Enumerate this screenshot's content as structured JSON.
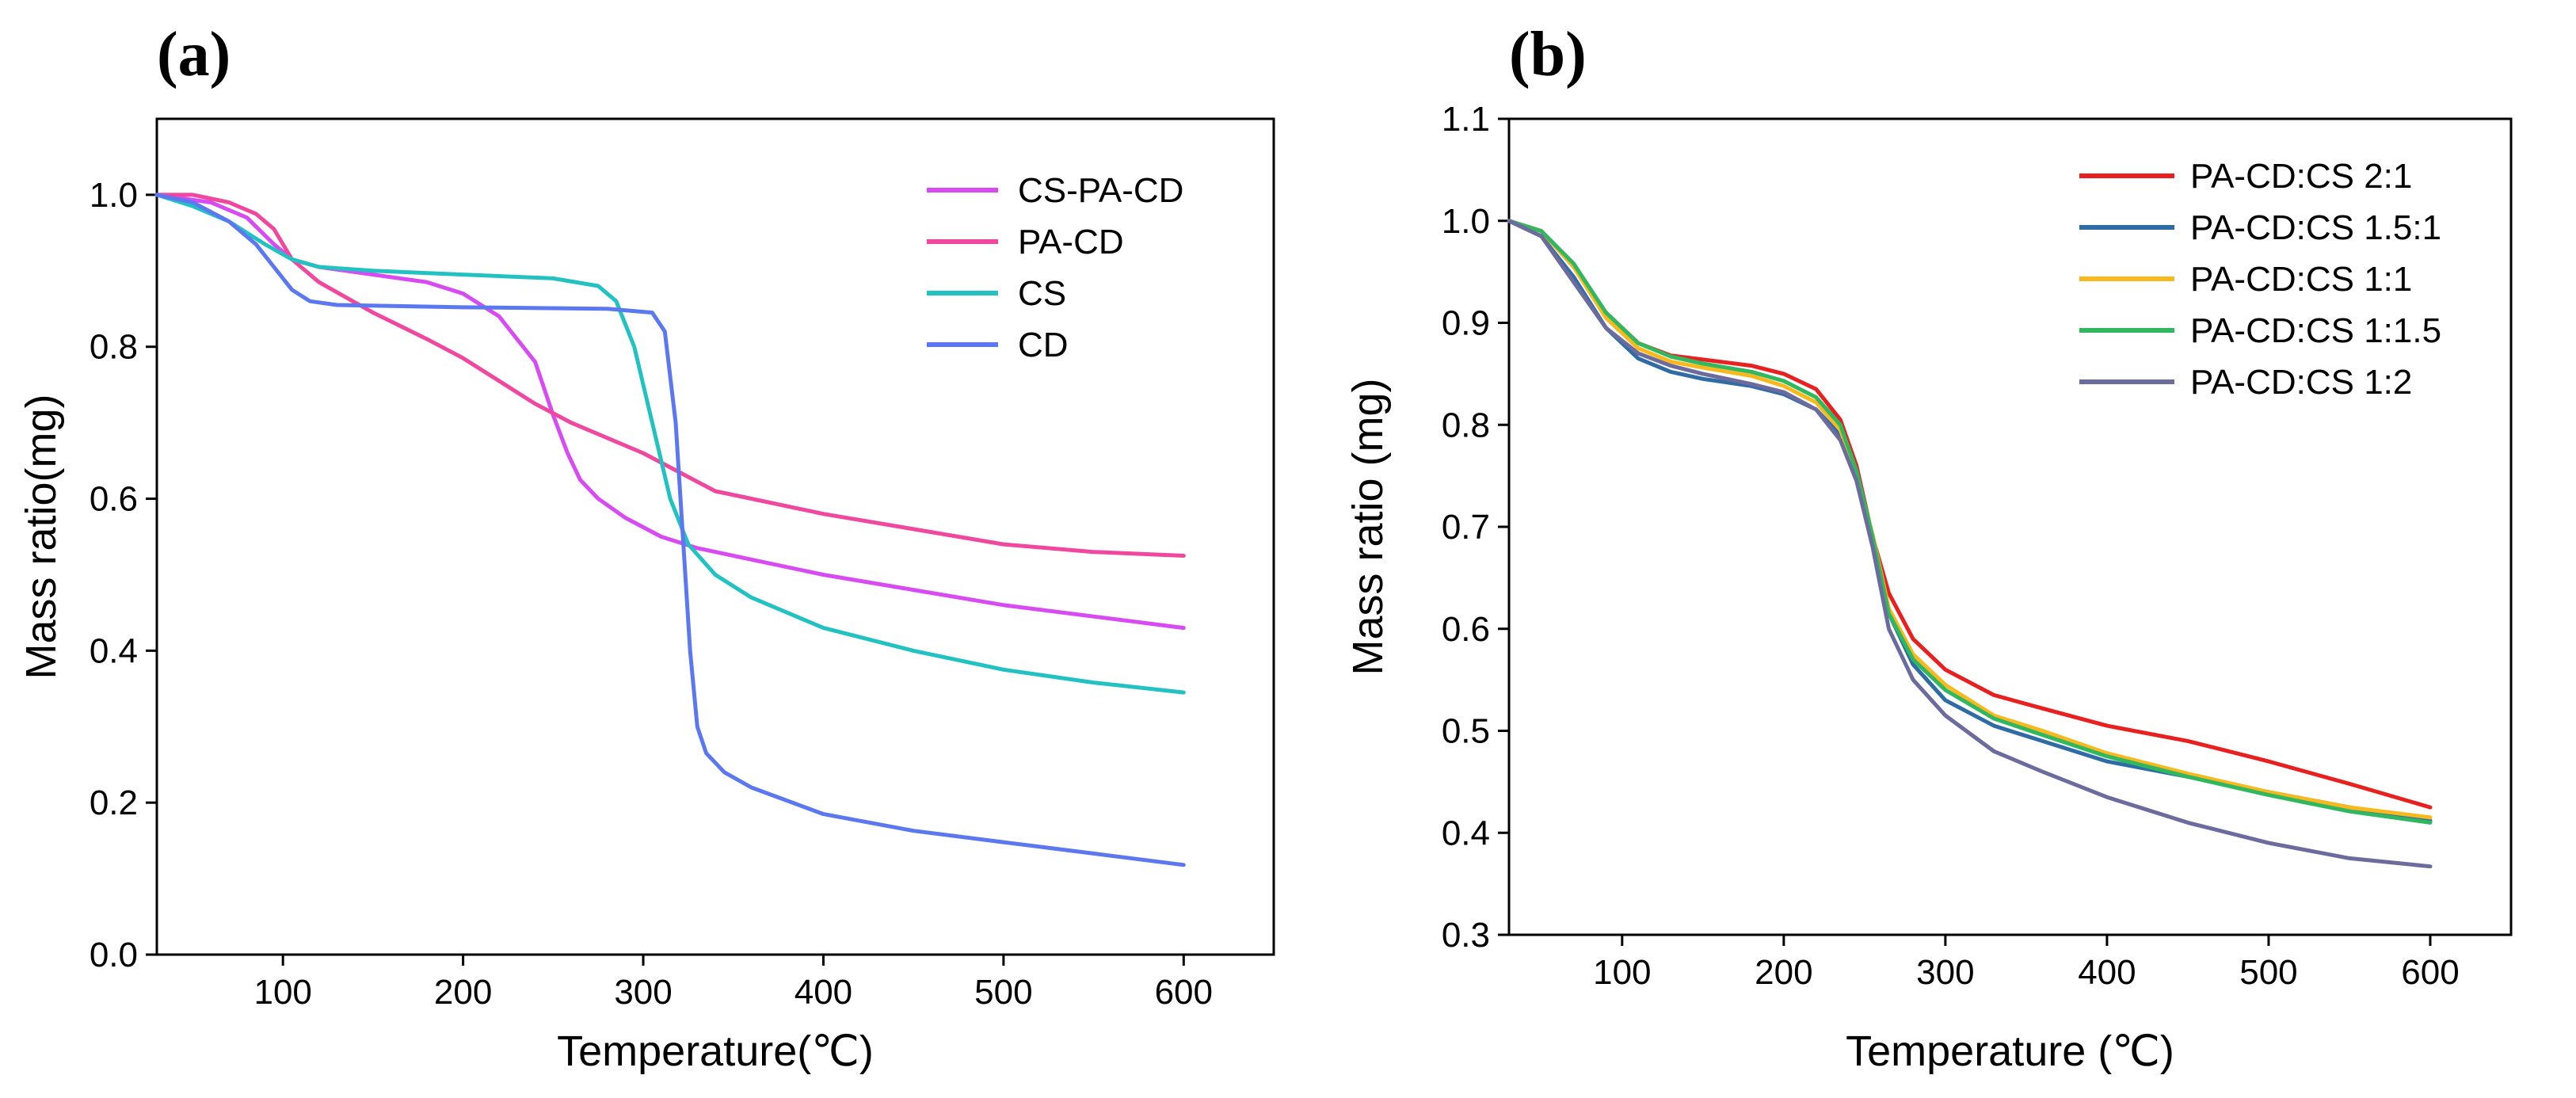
{
  "chart_data": [
    {
      "type": "line",
      "panel_label": "(a)",
      "title": "",
      "xlabel": "Temperature(℃)",
      "ylabel": "Mass ratio(mg)",
      "xlim": [
        30,
        650
      ],
      "ylim": [
        0.0,
        1.1
      ],
      "xticks": [
        100,
        200,
        300,
        400,
        500,
        600
      ],
      "yticks": [
        0.0,
        0.2,
        0.4,
        0.6,
        0.8,
        1.0
      ],
      "tick_decimals": 1,
      "legend_position": "top-right",
      "series": [
        {
          "name": "CS-PA-CD",
          "color": "#d94bf2",
          "x": [
            30,
            60,
            80,
            95,
            105,
            120,
            150,
            180,
            200,
            220,
            240,
            250,
            258,
            265,
            275,
            290,
            310,
            330,
            360,
            400,
            450,
            500,
            550,
            600
          ],
          "y": [
            1.0,
            0.99,
            0.97,
            0.935,
            0.915,
            0.905,
            0.895,
            0.885,
            0.87,
            0.84,
            0.78,
            0.71,
            0.66,
            0.625,
            0.6,
            0.575,
            0.55,
            0.535,
            0.52,
            0.5,
            0.48,
            0.46,
            0.445,
            0.43
          ]
        },
        {
          "name": "PA-CD",
          "color": "#f0479f",
          "x": [
            30,
            50,
            70,
            85,
            95,
            105,
            120,
            150,
            180,
            200,
            220,
            240,
            260,
            280,
            300,
            320,
            340,
            360,
            400,
            450,
            500,
            550,
            600
          ],
          "y": [
            1.0,
            1.0,
            0.99,
            0.975,
            0.955,
            0.915,
            0.885,
            0.845,
            0.81,
            0.785,
            0.755,
            0.725,
            0.7,
            0.68,
            0.66,
            0.635,
            0.61,
            0.6,
            0.58,
            0.56,
            0.54,
            0.53,
            0.525
          ]
        },
        {
          "name": "CS",
          "color": "#23c2c2",
          "x": [
            30,
            50,
            70,
            90,
            105,
            120,
            150,
            200,
            250,
            275,
            285,
            295,
            305,
            315,
            325,
            340,
            360,
            400,
            450,
            500,
            550,
            600
          ],
          "y": [
            1.0,
            0.985,
            0.965,
            0.935,
            0.915,
            0.905,
            0.9,
            0.895,
            0.89,
            0.88,
            0.86,
            0.8,
            0.7,
            0.6,
            0.54,
            0.5,
            0.47,
            0.43,
            0.4,
            0.375,
            0.358,
            0.345
          ]
        },
        {
          "name": "CD",
          "color": "#5b78f0",
          "x": [
            30,
            50,
            70,
            85,
            95,
            105,
            115,
            130,
            200,
            280,
            305,
            312,
            318,
            322,
            326,
            330,
            335,
            345,
            360,
            400,
            450,
            500,
            550,
            600
          ],
          "y": [
            1.0,
            0.99,
            0.965,
            0.935,
            0.905,
            0.875,
            0.86,
            0.855,
            0.852,
            0.85,
            0.845,
            0.82,
            0.7,
            0.55,
            0.4,
            0.3,
            0.265,
            0.24,
            0.22,
            0.185,
            0.163,
            0.148,
            0.133,
            0.118
          ]
        }
      ]
    },
    {
      "type": "line",
      "panel_label": "(b)",
      "title": "",
      "xlabel": "Temperature (℃)",
      "ylabel": "Mass ratio (mg)",
      "xlim": [
        30,
        650
      ],
      "ylim": [
        0.3,
        1.1
      ],
      "xticks": [
        100,
        200,
        300,
        400,
        500,
        600
      ],
      "yticks": [
        0.3,
        0.4,
        0.5,
        0.6,
        0.7,
        0.8,
        0.9,
        1.0,
        1.1
      ],
      "tick_decimals": 1,
      "legend_position": "top-right",
      "series": [
        {
          "name": "PA-CD:CS 2:1",
          "color": "#e8201f",
          "x": [
            30,
            50,
            70,
            90,
            110,
            130,
            150,
            180,
            200,
            220,
            235,
            245,
            255,
            265,
            280,
            300,
            330,
            360,
            400,
            450,
            500,
            550,
            600
          ],
          "y": [
            1.0,
            0.99,
            0.955,
            0.91,
            0.88,
            0.868,
            0.864,
            0.858,
            0.85,
            0.835,
            0.805,
            0.76,
            0.69,
            0.635,
            0.59,
            0.56,
            0.535,
            0.522,
            0.505,
            0.49,
            0.47,
            0.448,
            0.425
          ]
        },
        {
          "name": "PA-CD:CS 1.5:1",
          "color": "#2f6ca5",
          "x": [
            30,
            50,
            70,
            90,
            110,
            130,
            150,
            180,
            200,
            220,
            235,
            245,
            255,
            265,
            280,
            300,
            330,
            360,
            400,
            450,
            500,
            550,
            600
          ],
          "y": [
            1.0,
            0.985,
            0.945,
            0.895,
            0.865,
            0.852,
            0.845,
            0.838,
            0.83,
            0.815,
            0.79,
            0.75,
            0.69,
            0.615,
            0.565,
            0.53,
            0.505,
            0.49,
            0.47,
            0.455,
            0.44,
            0.425,
            0.412
          ]
        },
        {
          "name": "PA-CD:CS 1:1",
          "color": "#f9b81c",
          "x": [
            30,
            50,
            70,
            90,
            110,
            130,
            150,
            180,
            200,
            220,
            235,
            245,
            255,
            265,
            280,
            300,
            330,
            360,
            400,
            450,
            500,
            550,
            600
          ],
          "y": [
            1.0,
            0.99,
            0.955,
            0.905,
            0.875,
            0.862,
            0.856,
            0.848,
            0.838,
            0.822,
            0.795,
            0.752,
            0.692,
            0.62,
            0.575,
            0.545,
            0.515,
            0.5,
            0.478,
            0.458,
            0.44,
            0.425,
            0.415
          ]
        },
        {
          "name": "PA-CD:CS 1:1.5",
          "color": "#30b860",
          "x": [
            30,
            50,
            70,
            90,
            110,
            130,
            150,
            180,
            200,
            220,
            235,
            245,
            255,
            265,
            280,
            300,
            330,
            360,
            400,
            450,
            500,
            550,
            600
          ],
          "y": [
            1.0,
            0.99,
            0.958,
            0.91,
            0.88,
            0.867,
            0.86,
            0.852,
            0.843,
            0.827,
            0.8,
            0.755,
            0.69,
            0.615,
            0.57,
            0.54,
            0.512,
            0.496,
            0.475,
            0.455,
            0.437,
            0.421,
            0.41
          ]
        },
        {
          "name": "PA-CD:CS 1:2",
          "color": "#6b6b9e",
          "x": [
            30,
            50,
            70,
            90,
            110,
            130,
            150,
            180,
            200,
            220,
            235,
            245,
            255,
            265,
            280,
            300,
            330,
            360,
            400,
            450,
            500,
            550,
            600
          ],
          "y": [
            1.0,
            0.985,
            0.94,
            0.895,
            0.87,
            0.858,
            0.85,
            0.84,
            0.832,
            0.815,
            0.785,
            0.745,
            0.68,
            0.6,
            0.55,
            0.515,
            0.48,
            0.46,
            0.435,
            0.41,
            0.39,
            0.375,
            0.367
          ]
        }
      ]
    }
  ]
}
